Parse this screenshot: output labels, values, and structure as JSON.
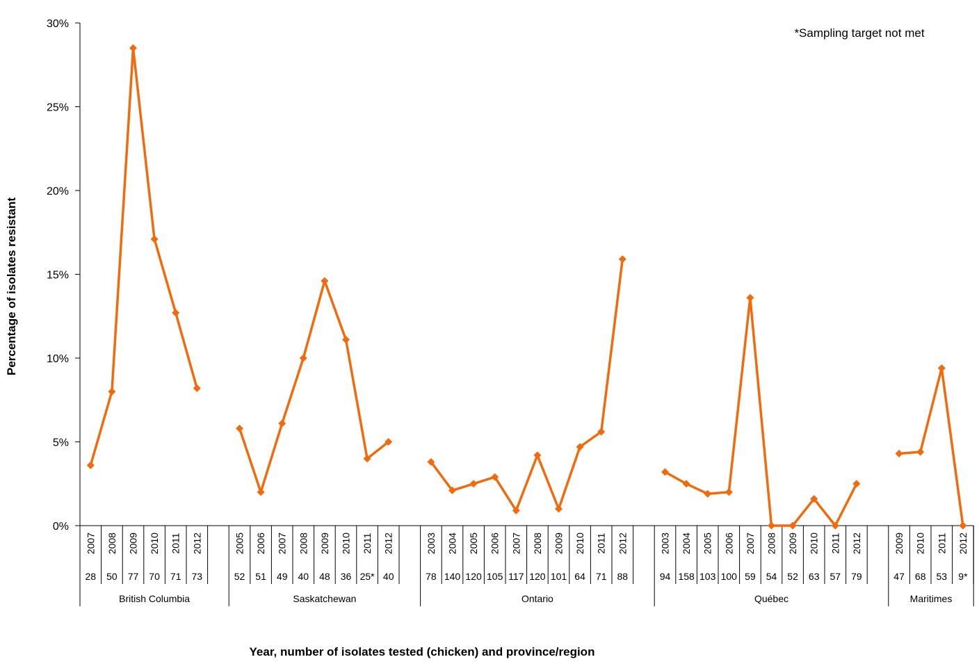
{
  "chart_data": {
    "type": "line",
    "ylabel": "Percentage of isolates resistant",
    "xlabel": "Year, number of isolates tested (chicken) and province/region",
    "annotation": "*Sampling target not met",
    "ylim": [
      0,
      30
    ],
    "yticks": [
      "0%",
      "5%",
      "10%",
      "15%",
      "20%",
      "25%",
      "30%"
    ],
    "series_color": "#F26A0C",
    "groups": [
      {
        "name": "British Columbia",
        "points": [
          {
            "year": "2007",
            "n": "28",
            "value": 3.6
          },
          {
            "year": "2008",
            "n": "50",
            "value": 8.0
          },
          {
            "year": "2009",
            "n": "77",
            "value": 28.5
          },
          {
            "year": "2010",
            "n": "70",
            "value": 17.1
          },
          {
            "year": "2011",
            "n": "71",
            "value": 12.7
          },
          {
            "year": "2012",
            "n": "73",
            "value": 8.2
          }
        ]
      },
      {
        "name": "Saskatchewan",
        "points": [
          {
            "year": "2005",
            "n": "52",
            "value": 5.8
          },
          {
            "year": "2006",
            "n": "51",
            "value": 2.0
          },
          {
            "year": "2007",
            "n": "49",
            "value": 6.1
          },
          {
            "year": "2008",
            "n": "40",
            "value": 10.0
          },
          {
            "year": "2009",
            "n": "48",
            "value": 14.6
          },
          {
            "year": "2010",
            "n": "36",
            "value": 11.1
          },
          {
            "year": "2011",
            "n": "25*",
            "value": 4.0
          },
          {
            "year": "2012",
            "n": "40",
            "value": 5.0
          }
        ]
      },
      {
        "name": "Ontario",
        "points": [
          {
            "year": "2003",
            "n": "78",
            "value": 3.8
          },
          {
            "year": "2004",
            "n": "140",
            "value": 2.1
          },
          {
            "year": "2005",
            "n": "120",
            "value": 2.5
          },
          {
            "year": "2006",
            "n": "105",
            "value": 2.9
          },
          {
            "year": "2007",
            "n": "117",
            "value": 0.9
          },
          {
            "year": "2008",
            "n": "120",
            "value": 4.2
          },
          {
            "year": "2009",
            "n": "101",
            "value": 1.0
          },
          {
            "year": "2010",
            "n": "64",
            "value": 4.7
          },
          {
            "year": "2011",
            "n": "71",
            "value": 5.6
          },
          {
            "year": "2012",
            "n": "88",
            "value": 15.9
          }
        ]
      },
      {
        "name": "Québec",
        "points": [
          {
            "year": "2003",
            "n": "94",
            "value": 3.2
          },
          {
            "year": "2004",
            "n": "158",
            "value": 2.5
          },
          {
            "year": "2005",
            "n": "103",
            "value": 1.9
          },
          {
            "year": "2006",
            "n": "100",
            "value": 2.0
          },
          {
            "year": "2007",
            "n": "59",
            "value": 13.6
          },
          {
            "year": "2008",
            "n": "54",
            "value": 0.0
          },
          {
            "year": "2009",
            "n": "52",
            "value": 0.0
          },
          {
            "year": "2010",
            "n": "63",
            "value": 1.6
          },
          {
            "year": "2011",
            "n": "57",
            "value": 0.0
          },
          {
            "year": "2012",
            "n": "79",
            "value": 2.5
          }
        ]
      },
      {
        "name": "Maritimes",
        "points": [
          {
            "year": "2009",
            "n": "47",
            "value": 4.3
          },
          {
            "year": "2010",
            "n": "68",
            "value": 4.4
          },
          {
            "year": "2011",
            "n": "53",
            "value": 9.4
          },
          {
            "year": "2012",
            "n": "9*",
            "value": 0.0
          }
        ]
      }
    ]
  }
}
